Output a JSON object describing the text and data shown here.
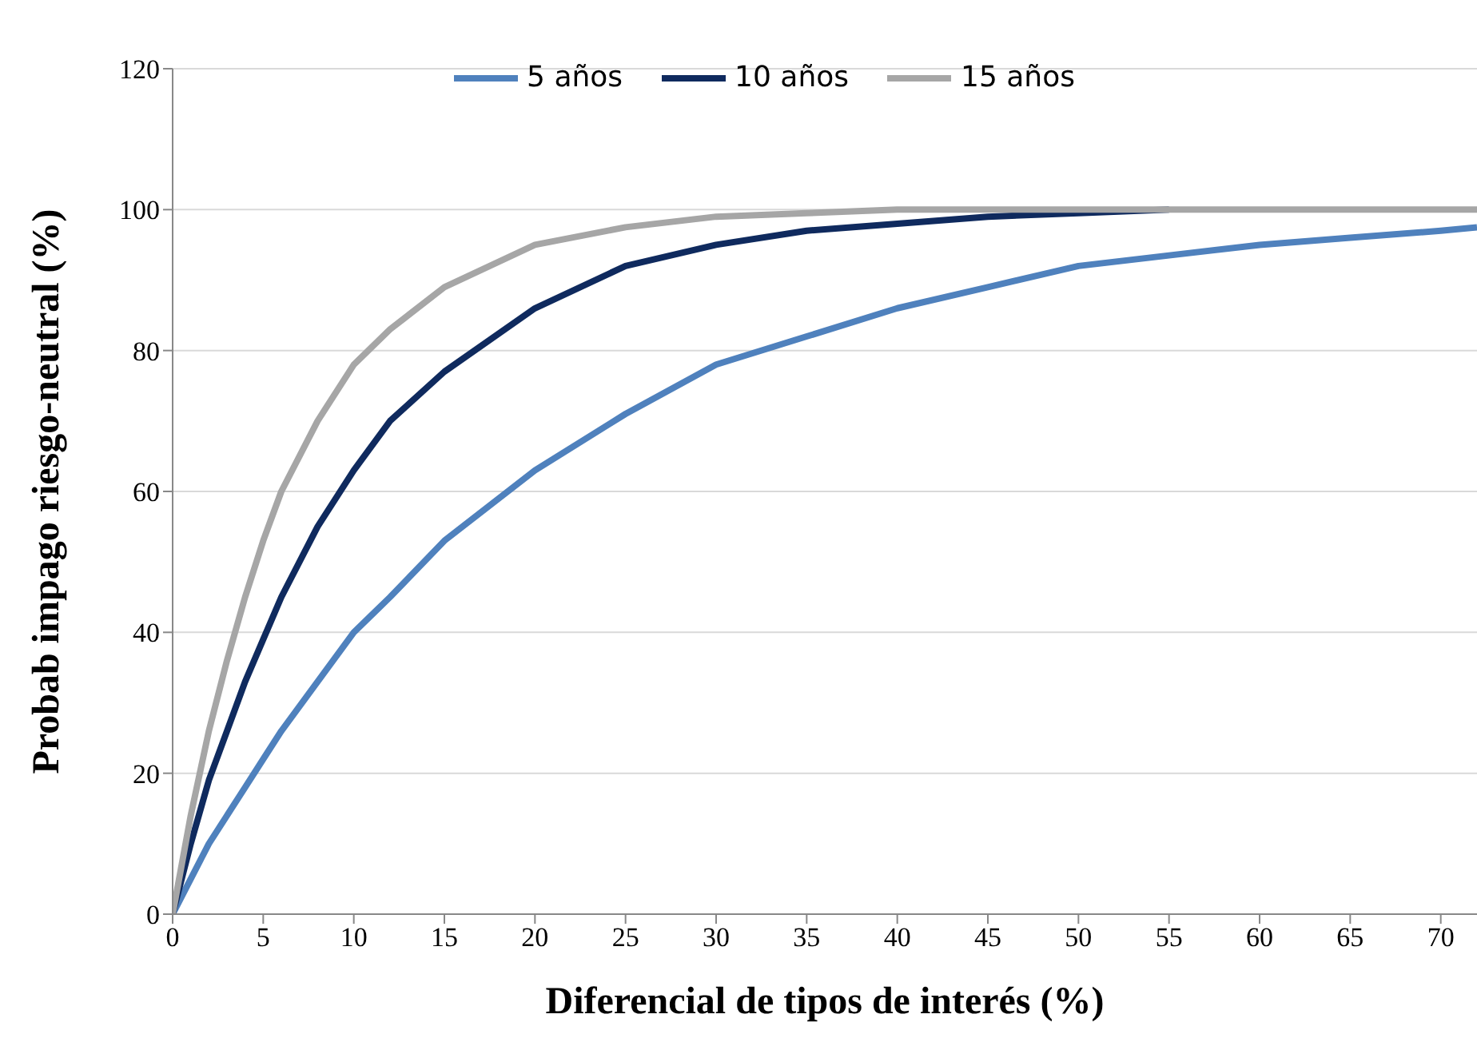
{
  "chart_data": {
    "type": "line",
    "xlabel": "Diferencial de tipos de interés (%)",
    "ylabel": "Probab impago riesgo-neutral (%)",
    "x": [
      0,
      1,
      2,
      3,
      4,
      5,
      6,
      8,
      10,
      12,
      15,
      20,
      25,
      30,
      35,
      40,
      45,
      50,
      55,
      60,
      65,
      70,
      72
    ],
    "series": [
      {
        "name": "5 años",
        "color": "#4f81bd",
        "values": [
          0,
          5,
          10,
          14,
          18,
          22,
          26,
          33,
          40,
          45,
          53,
          63,
          71,
          78,
          82,
          86,
          89,
          92,
          93.5,
          95,
          96,
          97,
          97.5
        ]
      },
      {
        "name": "10 años",
        "color": "#0f2a5e",
        "values": [
          0,
          10,
          19,
          26,
          33,
          39,
          45,
          55,
          63,
          70,
          77,
          86,
          92,
          95,
          97,
          98,
          99,
          99.5,
          100,
          null,
          null,
          null,
          null
        ]
      },
      {
        "name": "15 años",
        "color": "#a6a6a6",
        "values": [
          0,
          14,
          26,
          36,
          45,
          53,
          60,
          70,
          78,
          83,
          89,
          95,
          97.5,
          99,
          99.5,
          100,
          100,
          100,
          100,
          100,
          100,
          100,
          100
        ]
      }
    ],
    "xlim": [
      0,
      72
    ],
    "xticks": [
      0,
      5,
      10,
      15,
      20,
      25,
      30,
      35,
      40,
      45,
      50,
      55,
      60,
      65,
      70
    ],
    "ylim": [
      0,
      120
    ],
    "yticks": [
      0,
      20,
      40,
      60,
      80,
      100,
      120
    ],
    "grid": "y",
    "legend": "top",
    "marker": "none",
    "line_style": "solid"
  }
}
